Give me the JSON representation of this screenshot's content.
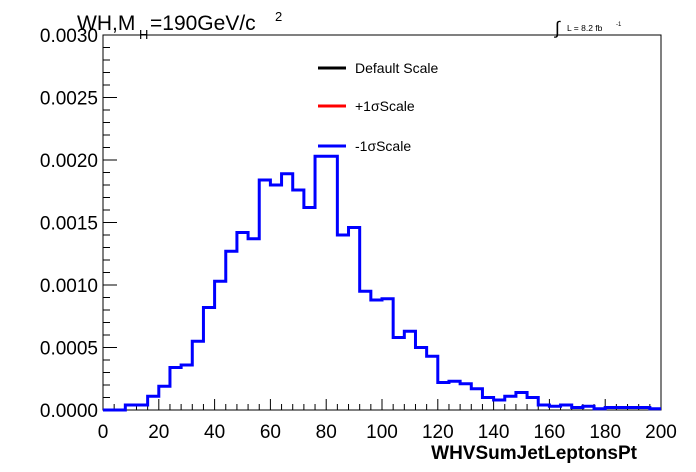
{
  "header": {
    "title_main": "WH,M",
    "title_sub": "H",
    "title_rest": "=190GeV/c",
    "title_sup": "2",
    "lumi_symbol": "∫",
    "lumi_text": "L = 8.2 fb",
    "lumi_sup": "-1"
  },
  "legend": {
    "items": [
      {
        "label": "Default Scale",
        "color": "#000000"
      },
      {
        "label": "+1σScale",
        "color": "#ff0000"
      },
      {
        "label": "-1σScale",
        "color": "#0000ff"
      }
    ]
  },
  "chart_data": {
    "type": "line",
    "title": "WH,MH=190GeV/c2",
    "xlabel": "WHVSumJetLeptonsPt",
    "ylabel": "",
    "xlim": [
      0,
      200
    ],
    "ylim": [
      0,
      0.003
    ],
    "grid": false,
    "legend_position": "top-center",
    "x_ticks": [
      "0",
      "20",
      "40",
      "60",
      "80",
      "100",
      "120",
      "140",
      "160",
      "180",
      "200"
    ],
    "y_ticks": [
      "0.0000",
      "0.0005",
      "0.0010",
      "0.0015",
      "0.0020",
      "0.0025",
      "0.0030"
    ],
    "bin_width": 4,
    "bin_edges_start": 0,
    "series": [
      {
        "name": "-1σScale",
        "color": "#0000ff",
        "values": [
          0.0,
          0.0,
          4e-05,
          4e-05,
          0.00011,
          0.00019,
          0.00034,
          0.00036,
          0.00055,
          0.00082,
          0.00103,
          0.00127,
          0.00142,
          0.00137,
          0.00184,
          0.0018,
          0.00189,
          0.00176,
          0.00162,
          0.00203,
          0.00203,
          0.0014,
          0.00146,
          0.00095,
          0.00088,
          0.00089,
          0.00058,
          0.00063,
          0.0005,
          0.00043,
          0.00022,
          0.00023,
          0.00021,
          0.00017,
          0.0001,
          8e-05,
          0.00011,
          0.00014,
          0.0001,
          4e-05,
          3e-05,
          4e-05,
          2e-05,
          3e-05,
          1e-05,
          2e-05,
          2e-05,
          2e-05,
          2e-05,
          1e-05
        ]
      }
    ]
  }
}
